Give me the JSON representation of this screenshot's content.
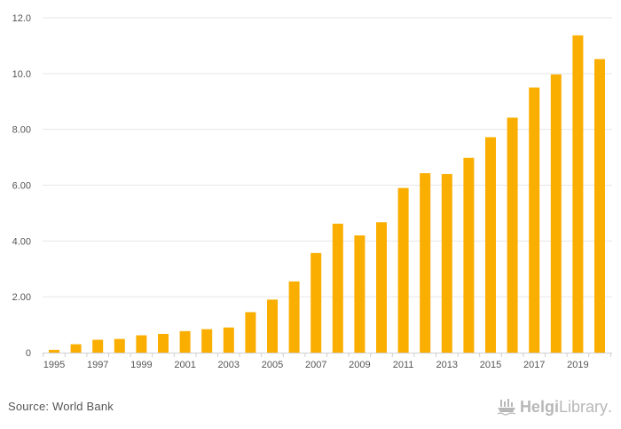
{
  "chart_data": {
    "type": "bar",
    "x": [
      1995,
      1996,
      1997,
      1998,
      1999,
      2000,
      2001,
      2002,
      2003,
      2004,
      2005,
      2006,
      2007,
      2008,
      2009,
      2010,
      2011,
      2012,
      2013,
      2014,
      2015,
      2016,
      2017,
      2018,
      2019,
      2020
    ],
    "values": [
      0.1,
      0.3,
      0.46,
      0.49,
      0.62,
      0.67,
      0.77,
      0.84,
      0.9,
      1.45,
      1.9,
      2.55,
      3.57,
      4.62,
      4.2,
      4.67,
      5.9,
      6.43,
      6.4,
      6.98,
      7.72,
      8.42,
      9.5,
      9.97,
      11.37,
      10.52
    ],
    "ylim": [
      0,
      12
    ],
    "yticks": [
      "0",
      "2.00",
      "4.00",
      "6.00",
      "8.00",
      "10.0",
      "12.0"
    ],
    "ytick_values": [
      0,
      2,
      4,
      6,
      8,
      10,
      12
    ],
    "xticks": [
      "1995",
      "1997",
      "1999",
      "2001",
      "2003",
      "2005",
      "2007",
      "2009",
      "2011",
      "2013",
      "2015",
      "2017",
      "2019"
    ],
    "xtick_years": [
      1995,
      1997,
      1999,
      2001,
      2003,
      2005,
      2007,
      2009,
      2011,
      2013,
      2015,
      2017,
      2019
    ],
    "title": "",
    "xlabel": "",
    "ylabel": "",
    "grid": "horizontal",
    "bar_color": "#FAAE00"
  },
  "footer": {
    "source": "Source: World Bank",
    "brand_bold": "Helgi",
    "brand_light": "Library",
    "brand_dot": ".",
    "brand_icon": "ship-icon",
    "brand_color": "#B8B8B8"
  }
}
